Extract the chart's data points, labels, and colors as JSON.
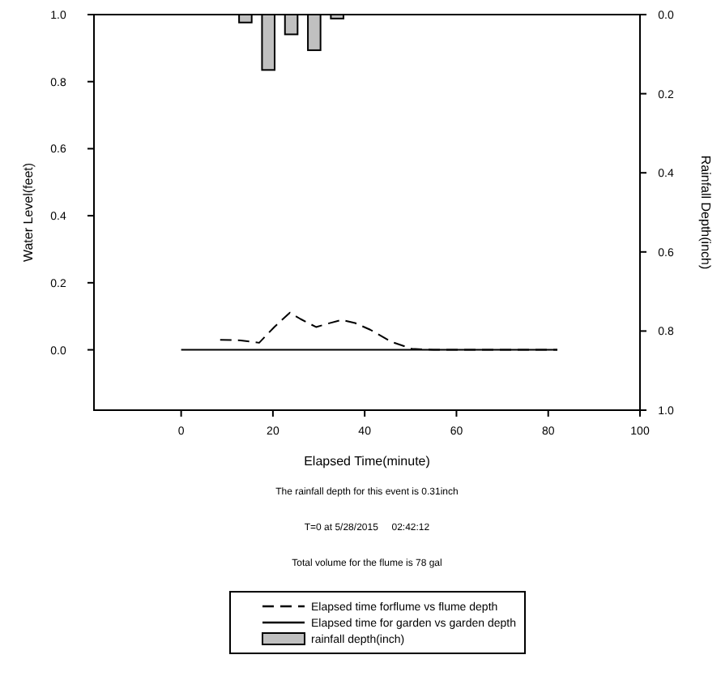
{
  "chart_data": {
    "type": "line",
    "xlabel": "Elapsed Time(minute)",
    "ylabel": "Water Level(feet)",
    "y2label": "Rainfall Depth(inch)",
    "xlim": [
      -19,
      100
    ],
    "xticks": [
      0,
      20,
      40,
      60,
      80,
      100
    ],
    "ylim": [
      -0.18,
      1.0
    ],
    "yticks": [
      {
        "value": 0,
        "label": "0.0"
      },
      0.2,
      0.4,
      0.6,
      0.8,
      {
        "value": 1,
        "label": "1.0"
      }
    ],
    "y2lim": [
      1.0,
      0.0
    ],
    "y2ticks": [
      {
        "value": 0,
        "label": "0.0"
      },
      0.2,
      0.4,
      0.6,
      0.8,
      {
        "value": 1,
        "label": "1.0"
      }
    ],
    "annotations": [
      "The rainfall depth for this event is 0.31inch",
      "T=0 at 5/28/2015     02:42:12",
      "Total volume for the flume is 78 gal"
    ],
    "legend": "bottom",
    "grid": false,
    "marker": "none",
    "series": [
      {
        "name": "Elapsed time forflume vs flume depth",
        "line_style": "dashed",
        "color": "#000000",
        "x": [
          8.5,
          13,
          17,
          20.3,
          23.7,
          26,
          29.4,
          32.2,
          35,
          37.9,
          41.2,
          45.8,
          50.3,
          55,
          60,
          65,
          70,
          75,
          82
        ],
        "values": [
          0.03,
          0.028,
          0.021,
          0.068,
          0.111,
          0.092,
          0.068,
          0.079,
          0.089,
          0.08,
          0.06,
          0.024,
          0.003,
          0,
          0,
          0,
          0,
          0,
          0
        ]
      },
      {
        "name": "Elapsed time for garden vs garden depth",
        "line_style": "solid",
        "color": "#000000",
        "x": [
          0,
          82
        ],
        "values": [
          0,
          0
        ]
      },
      {
        "name": "rainfall depth(inch)",
        "type": "bar",
        "axis": "y2",
        "color": "#c0c0c0",
        "x": [
          14,
          19,
          24,
          29,
          34
        ],
        "values": [
          0.02,
          0.14,
          0.05,
          0.09,
          0.01
        ]
      }
    ]
  }
}
